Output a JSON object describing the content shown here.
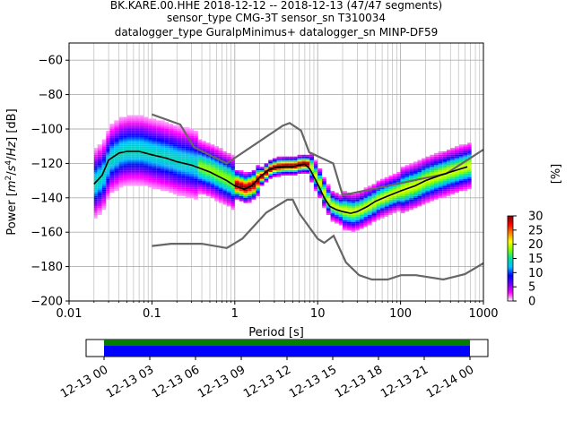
{
  "chart_data": [
    {
      "type": "heatmap",
      "title_lines": [
        "BK.KARE.00.HHE   2018-12-12 -- 2018-12-13  (47/47 segments)",
        "sensor_type CMG-3T sensor_sn T310034",
        "datalogger_type GuralpMinimus+ datalogger_sn MINP-DF59"
      ],
      "xlabel": "Period [s]",
      "ylabel_parts": [
        "Power [",
        "m",
        "2",
        "/",
        "s",
        "4",
        "/",
        "Hz",
        "] [dB]"
      ],
      "xscale": "log",
      "xlim": [
        0.01,
        1000
      ],
      "ylim": [
        -200,
        -50
      ],
      "x_ticks": [
        0.01,
        0.1,
        1,
        10,
        100,
        1000
      ],
      "x_tick_labels": [
        "0.01",
        "0.1",
        "1",
        "10",
        "100",
        "1000"
      ],
      "y_ticks": [
        -200,
        -180,
        -160,
        -140,
        -120,
        -100,
        -80,
        -60
      ],
      "y_tick_labels": [
        "−200",
        "−180",
        "−160",
        "−140",
        "−120",
        "−100",
        "−80",
        "−60"
      ],
      "grid": true,
      "period_bins": [
        0.02,
        0.022,
        0.025,
        0.028,
        0.031,
        0.035,
        0.04,
        0.045,
        0.05,
        0.056,
        0.063,
        0.071,
        0.08,
        0.09,
        0.1,
        0.113,
        0.127,
        0.143,
        0.16,
        0.18,
        0.2,
        0.226,
        0.254,
        0.285,
        0.32,
        0.36,
        0.4,
        0.45,
        0.51,
        0.57,
        0.64,
        0.72,
        0.8,
        0.9,
        1.0,
        1.13,
        1.27,
        1.43,
        1.6,
        1.8,
        2.0,
        2.26,
        2.54,
        2.85,
        3.2,
        3.6,
        4.0,
        4.5,
        5.1,
        5.7,
        6.4,
        7.2,
        8.0,
        9.0,
        10.0,
        11.3,
        12.7,
        14.3,
        16.0,
        18.0,
        20.0,
        22.6,
        25.4,
        28.5,
        32.0,
        36.0,
        40.0,
        45.0,
        51.0,
        57.0,
        64.0,
        72.0,
        80.0,
        90.0,
        100.0,
        113.0,
        127.0,
        143.0,
        160.0,
        180.0,
        200.0,
        226.0,
        254.0,
        285.0,
        320.0,
        360.0,
        400.0,
        450.0,
        510.0,
        570.0,
        640.0
      ],
      "mean_curve": {
        "name": "mean",
        "points": [
          [
            0.02,
            -132
          ],
          [
            0.025,
            -127
          ],
          [
            0.03,
            -118
          ],
          [
            0.04,
            -114
          ],
          [
            0.05,
            -113
          ],
          [
            0.07,
            -113
          ],
          [
            0.1,
            -115
          ],
          [
            0.15,
            -117
          ],
          [
            0.2,
            -119
          ],
          [
            0.3,
            -121
          ],
          [
            0.5,
            -125
          ],
          [
            0.8,
            -130
          ],
          [
            1.0,
            -133
          ],
          [
            1.3,
            -135
          ],
          [
            1.6,
            -133
          ],
          [
            2.0,
            -128
          ],
          [
            2.5,
            -124
          ],
          [
            3.0,
            -122.5
          ],
          [
            4.0,
            -122
          ],
          [
            5.0,
            -122
          ],
          [
            6.0,
            -121
          ],
          [
            7.0,
            -120.5
          ],
          [
            8.0,
            -123
          ],
          [
            10.0,
            -132
          ],
          [
            12.0,
            -140
          ],
          [
            14.0,
            -145
          ],
          [
            17.0,
            -147
          ],
          [
            20.0,
            -148
          ],
          [
            25.0,
            -149
          ],
          [
            30.0,
            -148
          ],
          [
            40.0,
            -145
          ],
          [
            50.0,
            -142
          ],
          [
            70.0,
            -139
          ],
          [
            100.0,
            -136
          ],
          [
            150.0,
            -133
          ],
          [
            200.0,
            -130
          ],
          [
            300.0,
            -127
          ],
          [
            400.0,
            -125
          ],
          [
            640.0,
            -122
          ]
        ]
      },
      "noise_models": [
        {
          "name": "NHNM",
          "points": [
            [
              0.1,
              -91.5
            ],
            [
              0.22,
              -97.4
            ],
            [
              0.32,
              -110.5
            ],
            [
              0.8,
              -120.0
            ],
            [
              3.8,
              -98.0
            ],
            [
              4.6,
              -96.5
            ],
            [
              6.3,
              -101.0
            ],
            [
              7.9,
              -113.5
            ],
            [
              15.4,
              -120.0
            ],
            [
              20.0,
              -138.5
            ],
            [
              354.8,
              -126.0
            ],
            [
              1000.0,
              -112.0
            ]
          ]
        },
        {
          "name": "NLNM",
          "points": [
            [
              0.1,
              -168.0
            ],
            [
              0.17,
              -166.7
            ],
            [
              0.4,
              -166.7
            ],
            [
              0.8,
              -169.2
            ],
            [
              1.24,
              -163.7
            ],
            [
              2.4,
              -148.6
            ],
            [
              4.3,
              -141.1
            ],
            [
              5.0,
              -141.1
            ],
            [
              6.0,
              -149.0
            ],
            [
              10.0,
              -163.8
            ],
            [
              12.0,
              -166.2
            ],
            [
              15.6,
              -162.1
            ],
            [
              21.9,
              -177.5
            ],
            [
              31.6,
              -185.0
            ],
            [
              45.0,
              -187.5
            ],
            [
              70.0,
              -187.5
            ],
            [
              101.0,
              -185.0
            ],
            [
              154.0,
              -185.0
            ],
            [
              328.0,
              -187.5
            ],
            [
              600.0,
              -184.4
            ],
            [
              1000.0,
              -178.0
            ]
          ]
        }
      ],
      "colorbar": {
        "label": "[%]",
        "ticks": [
          0,
          5,
          10,
          15,
          20,
          25,
          30
        ],
        "range": [
          0,
          30
        ],
        "colormap": [
          "#ffffff",
          "#ff00ff",
          "#6a00ff",
          "#0000ff",
          "#00c0ff",
          "#00e0a0",
          "#80ff00",
          "#ffff00",
          "#ff8000",
          "#ff0000",
          "#800000"
        ]
      },
      "colors": {
        "mean": "#000000",
        "noise_model": "#666666",
        "grid": "#b0b0b0"
      }
    },
    {
      "type": "timeline",
      "tick_labels": [
        "12-13 00",
        "12-13 03",
        "12-13 06",
        "12-13 09",
        "12-13 12",
        "12-13 15",
        "12-13 18",
        "12-13 21",
        "12-14 00"
      ],
      "coverage_fraction": 1.0,
      "colors": {
        "data": "#0000ff",
        "gaps": "#008000"
      }
    }
  ]
}
